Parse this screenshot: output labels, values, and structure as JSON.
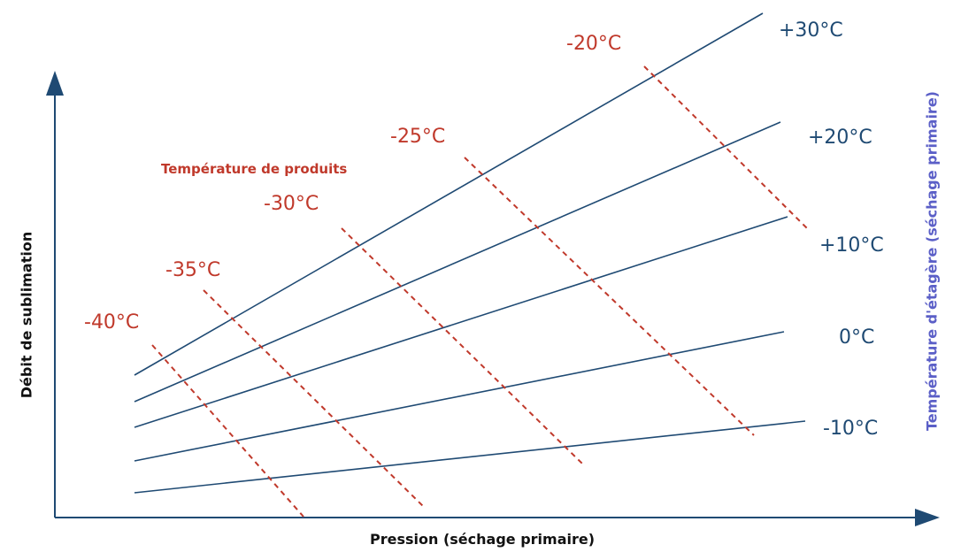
{
  "diagram": {
    "x_axis_label": "Pression (séchage primaire)",
    "y_axis_label": "Débit de sublimation",
    "right_axis_label": "Température d'étagère (séchage primaire)",
    "product_legend_title": "Température de produits",
    "shelf_temperatures": [
      "+30°C",
      "+20°C",
      "+10°C",
      "0°C",
      "-10°C"
    ],
    "product_temperatures": [
      "-40°C",
      "-35°C",
      "-30°C",
      "-25°C",
      "-20°C"
    ],
    "colors": {
      "axis": "#1f4a73",
      "shelf_lines": "#1f4a73",
      "product_lines": "#c0392b",
      "right_axis_text": "#5b5fc7"
    }
  }
}
